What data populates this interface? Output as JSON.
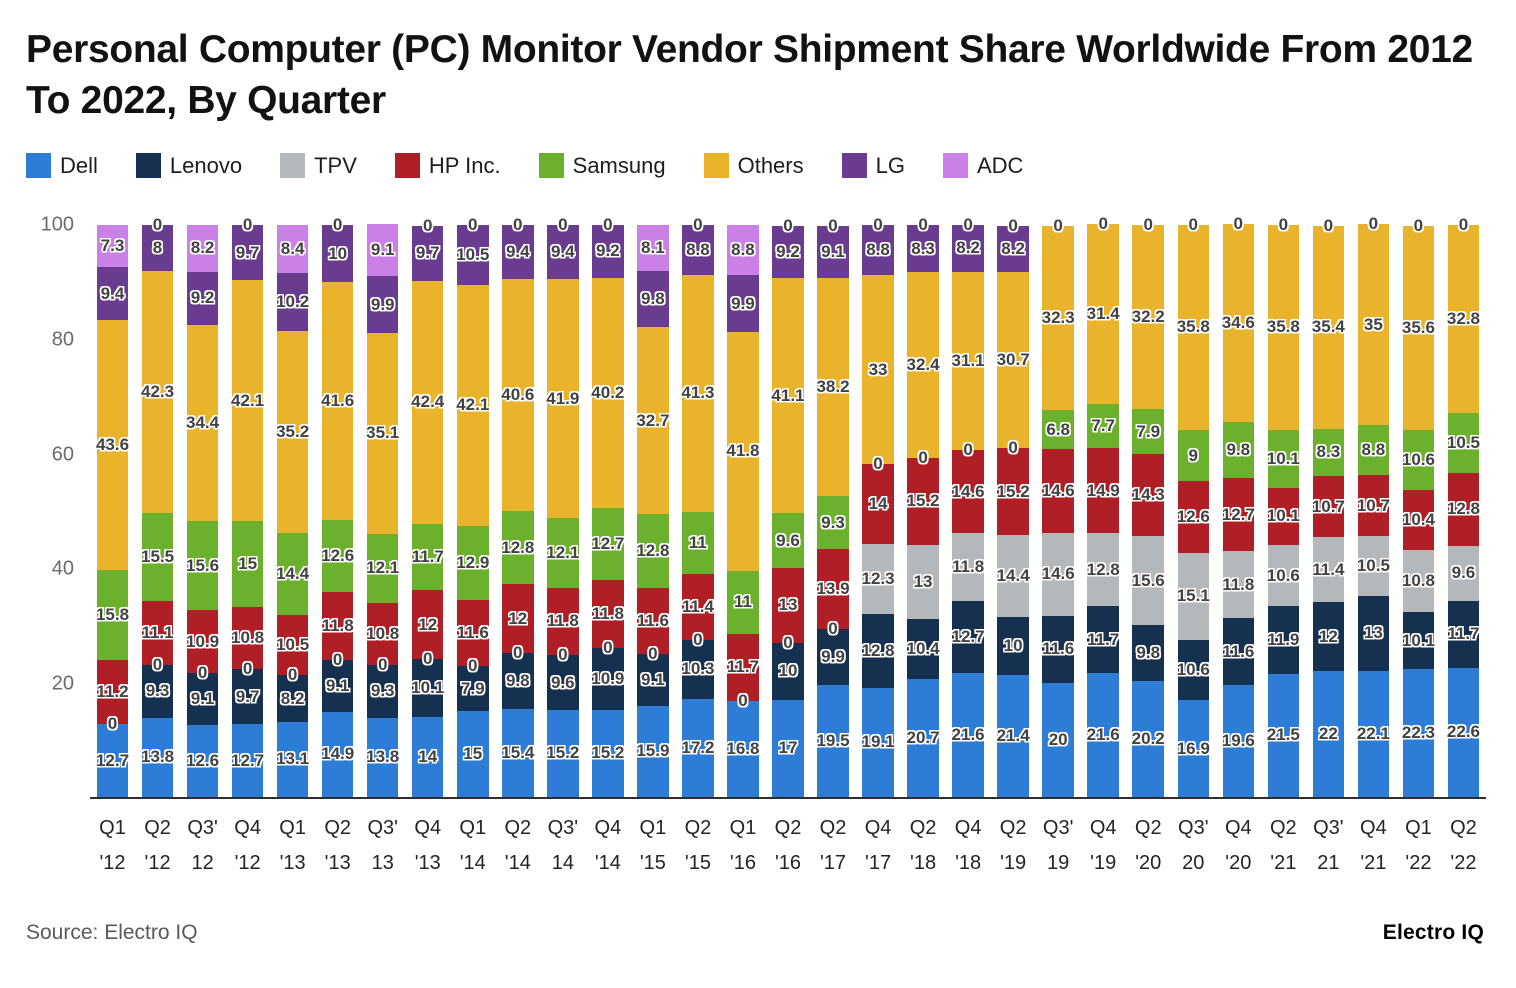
{
  "page": {
    "title": "Personal Computer (PC) Monitor Vendor Shipment Share Worldwide From 2012 To 2022, By Quarter",
    "source": "Source: Electro IQ",
    "brand": "Electro IQ"
  },
  "chart_data": {
    "type": "bar",
    "stacked": true,
    "title": "Personal Computer (PC) Monitor Vendor Shipment Share Worldwide From 2012 To 2022, By Quarter",
    "ylabel": "",
    "xlabel": "",
    "ylim": [
      0,
      100
    ],
    "yticks": [
      20,
      40,
      60,
      80,
      100
    ],
    "grid": false,
    "legend_position": "top",
    "value_labels": true,
    "categories": [
      [
        "Q1",
        "'12"
      ],
      [
        "Q2",
        "'12"
      ],
      [
        "Q3'",
        "12"
      ],
      [
        "Q4",
        "'12"
      ],
      [
        "Q1",
        "'13"
      ],
      [
        "Q2",
        "'13"
      ],
      [
        "Q3'",
        "13"
      ],
      [
        "Q4",
        "'13"
      ],
      [
        "Q1",
        "'14"
      ],
      [
        "Q2",
        "'14"
      ],
      [
        "Q3'",
        "14"
      ],
      [
        "Q4",
        "'14"
      ],
      [
        "Q1",
        "'15"
      ],
      [
        "Q2",
        "'15"
      ],
      [
        "Q1",
        "'16"
      ],
      [
        "Q2",
        "'16"
      ],
      [
        "Q2",
        "'17"
      ],
      [
        "Q4",
        "'17"
      ],
      [
        "Q2",
        "'18"
      ],
      [
        "Q4",
        "'18"
      ],
      [
        "Q2",
        "'19"
      ],
      [
        "Q3'",
        "19"
      ],
      [
        "Q4",
        "'19"
      ],
      [
        "Q2",
        "'20"
      ],
      [
        "Q3'",
        "20"
      ],
      [
        "Q4",
        "'20"
      ],
      [
        "Q2",
        "'21"
      ],
      [
        "Q3'",
        "21"
      ],
      [
        "Q4",
        "'21"
      ],
      [
        "Q1",
        "'22"
      ],
      [
        "Q2",
        "'22"
      ]
    ],
    "series": [
      {
        "name": "Dell",
        "color": "#2d7cd6",
        "values": [
          12.7,
          13.8,
          12.6,
          12.7,
          13.1,
          14.9,
          13.8,
          14,
          15,
          15.4,
          15.2,
          15.2,
          15.9,
          17.2,
          16.8,
          17,
          19.5,
          19.1,
          20.7,
          21.6,
          21.4,
          20,
          21.6,
          20.2,
          16.9,
          19.6,
          21.5,
          22,
          22.1,
          22.3,
          22.6
        ]
      },
      {
        "name": "Lenovo",
        "color": "#16314f",
        "values": [
          0,
          9.3,
          9.1,
          9.7,
          8.2,
          9.1,
          9.3,
          10.1,
          7.9,
          9.8,
          9.6,
          10.9,
          9.1,
          10.3,
          0,
          10,
          9.9,
          12.8,
          10.4,
          12.7,
          10,
          11.6,
          11.7,
          9.8,
          10.6,
          11.6,
          11.9,
          12,
          13,
          10.1,
          11.7
        ]
      },
      {
        "name": "TPV",
        "color": "#b5b8bb",
        "values": [
          0,
          0,
          0,
          0,
          0,
          0,
          0,
          0,
          0,
          0,
          0,
          0,
          0,
          0,
          0,
          0,
          0,
          12.3,
          13,
          11.8,
          14.4,
          14.6,
          12.8,
          15.6,
          15.1,
          11.8,
          10.6,
          11.4,
          10.5,
          10.8,
          9.6
        ]
      },
      {
        "name": "HP Inc.",
        "color": "#b01f26",
        "values": [
          11.2,
          11.1,
          10.9,
          10.8,
          10.5,
          11.8,
          10.8,
          12,
          11.6,
          12,
          11.8,
          11.8,
          11.6,
          11.4,
          11.7,
          13,
          13.9,
          14,
          15.2,
          14.6,
          15.2,
          14.6,
          14.9,
          14.3,
          12.6,
          12.7,
          10.1,
          10.7,
          10.7,
          10.4,
          12.8
        ]
      },
      {
        "name": "Samsung",
        "color": "#6cb12d",
        "values": [
          15.8,
          15.5,
          15.6,
          15,
          14.4,
          12.6,
          12.1,
          11.7,
          12.9,
          12.8,
          12.1,
          12.7,
          12.8,
          11,
          11,
          9.6,
          9.3,
          0,
          0,
          0,
          0,
          6.8,
          7.7,
          7.9,
          9,
          9.8,
          10.1,
          8.3,
          8.8,
          10.6,
          10.5
        ]
      },
      {
        "name": "Others",
        "color": "#e9b32b",
        "values": [
          43.6,
          42.3,
          34.4,
          42.1,
          35.2,
          41.6,
          35.1,
          42.4,
          42.1,
          40.6,
          41.9,
          40.2,
          32.7,
          41.3,
          41.8,
          41.1,
          38.2,
          33,
          32.4,
          31.1,
          30.7,
          32.3,
          31.4,
          32.2,
          35.8,
          34.6,
          35.8,
          35.4,
          35,
          35.6,
          32.8
        ]
      },
      {
        "name": "LG",
        "color": "#693c90",
        "values": [
          9.4,
          8,
          9.2,
          9.7,
          10.2,
          10,
          9.9,
          9.7,
          10.5,
          9.4,
          9.4,
          9.2,
          9.8,
          8.8,
          9.9,
          9.2,
          9.1,
          8.8,
          8.3,
          8.2,
          8.2,
          0,
          0,
          0,
          0,
          0,
          0,
          0,
          0,
          0,
          0
        ]
      },
      {
        "name": "ADC",
        "color": "#cb80e8",
        "values": [
          7.3,
          0,
          8.2,
          0,
          8.4,
          0,
          9.1,
          0,
          0,
          0,
          0,
          0,
          8.1,
          0,
          8.8,
          0,
          0,
          0,
          0,
          0,
          0,
          0,
          0,
          0,
          0,
          0,
          0,
          0,
          0,
          0,
          0
        ]
      }
    ]
  }
}
